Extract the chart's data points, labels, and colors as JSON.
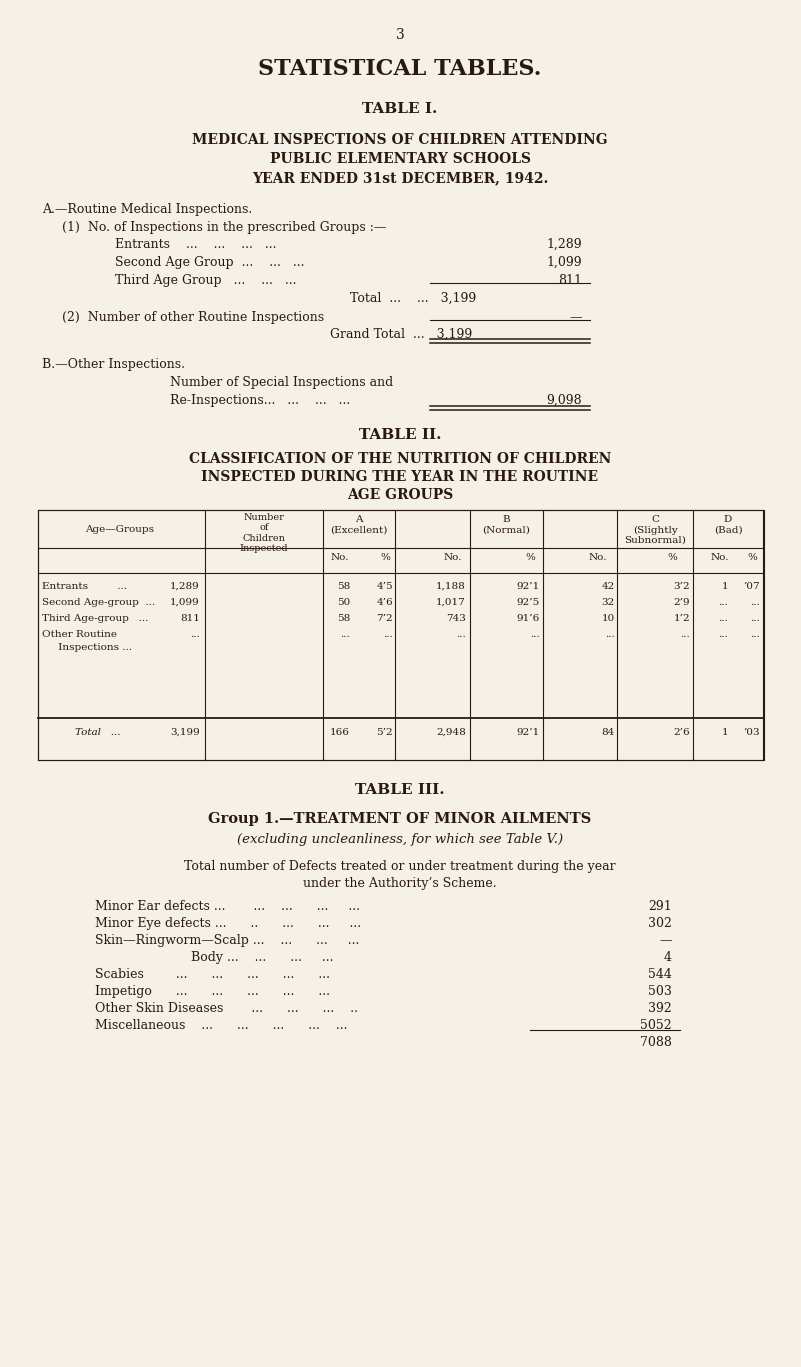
{
  "bg_color": "#f5f0e8",
  "text_color": "#2a1a0e",
  "page_number": "3",
  "main_title": "STATISTICAL TABLES.",
  "table1_title": "TABLE I.",
  "t1_sub1": "MEDICAL INSPECTIONS OF CHILDREN ATTENDING",
  "t1_sub2": "PUBLIC ELEMENTARY SCHOOLS",
  "t1_sub3": "YEAR ENDED 31st DECEMBER, 1942.",
  "sA_head": "A.—Routine Medical Inspections.",
  "sA_1": "(1)  No. of Inspections in the prescribed Groups :—",
  "entrants_val": "1,289",
  "second_val": "1,099",
  "third_val": "811",
  "total_val": "3,199",
  "sA_2": "(2)  Number of other Routine Inspections",
  "sA_2_val": "—",
  "grand_total_val": "3,199",
  "sB_head": "B.—Other Inspections.",
  "sB_line1": "Number of Special Inspections and",
  "sB_line2": "Re-Inspections...   ...    ...   ...",
  "sB_val": "9,098",
  "table2_title": "TABLE II.",
  "t2_sub1": "CLASSIFICATION OF THE NUTRITION OF CHILDREN",
  "t2_sub2": "INSPECTED DURING THE YEAR IN THE ROUTINE",
  "t2_sub3": "AGE GROUPS",
  "t2_rows": [
    {
      "group": "Entrants         ...",
      "n": "1,289",
      "a_no": "58",
      "a_pct": "4’5",
      "b_no": "1,188",
      "b_pct": "92’1",
      "c_no": "42",
      "c_pct": "3’2",
      "d_no": "1",
      "d_pct": "’07"
    },
    {
      "group": "Second Age-group  ...",
      "n": "1,099",
      "a_no": "50",
      "a_pct": "4’6",
      "b_no": "1,017",
      "b_pct": "92’5",
      "c_no": "32",
      "c_pct": "2’9",
      "d_no": "...",
      "d_pct": "..."
    },
    {
      "group": "Third Age-group   ...",
      "n": "811",
      "a_no": "58",
      "a_pct": "7’2",
      "b_no": "743",
      "b_pct": "91’6",
      "c_no": "10",
      "c_pct": "1’2",
      "d_no": "...",
      "d_pct": "..."
    },
    {
      "group": "Other Routine",
      "group2": "     Inspections ...",
      "n": "...",
      "a_no": "...",
      "a_pct": "...",
      "b_no": "...",
      "b_pct": "...",
      "c_no": "...",
      "c_pct": "...",
      "d_no": "...",
      "d_pct": "..."
    }
  ],
  "t2_total": {
    "n": "3,199",
    "a_no": "166",
    "a_pct": "5’2",
    "b_no": "2,948",
    "b_pct": "92’1",
    "c_no": "84",
    "c_pct": "2’6",
    "d_no": "1",
    "d_pct": "’03"
  },
  "table3_title": "TABLE III.",
  "t3_sub1": "Group 1.—TREATMENT OF MINOR AILMENTS",
  "t3_sub2": "(excluding uncleanliness, for which see Table V.)",
  "t3_intro1": "Total number of Defects treated or under treatment during the year",
  "t3_intro2": "under the Authority’s Scheme.",
  "t3_items": [
    {
      "label": "Minor Ear defects ...       ...    ...      ...     ...",
      "value": "291"
    },
    {
      "label": "Minor Eye defects ...      ..      ...      ...     ...",
      "value": "302"
    },
    {
      "label": "Skin—Ringworm—Scalp ...    ...      ...     ...",
      "value": "—"
    },
    {
      "label": "                        Body ...    ...      ...     ...",
      "value": "4"
    },
    {
      "label": "Scabies        ...      ...      ...      ...      ...",
      "value": "544"
    },
    {
      "label": "Impetigo      ...      ...      ...      ...      ...",
      "value": "503"
    },
    {
      "label": "Other Skin Diseases       ...      ...      ...    ..",
      "value": "392"
    },
    {
      "label": "Miscellaneous    ...      ...      ...      ...    ...",
      "value": "5052"
    }
  ],
  "t3_total": "7088"
}
